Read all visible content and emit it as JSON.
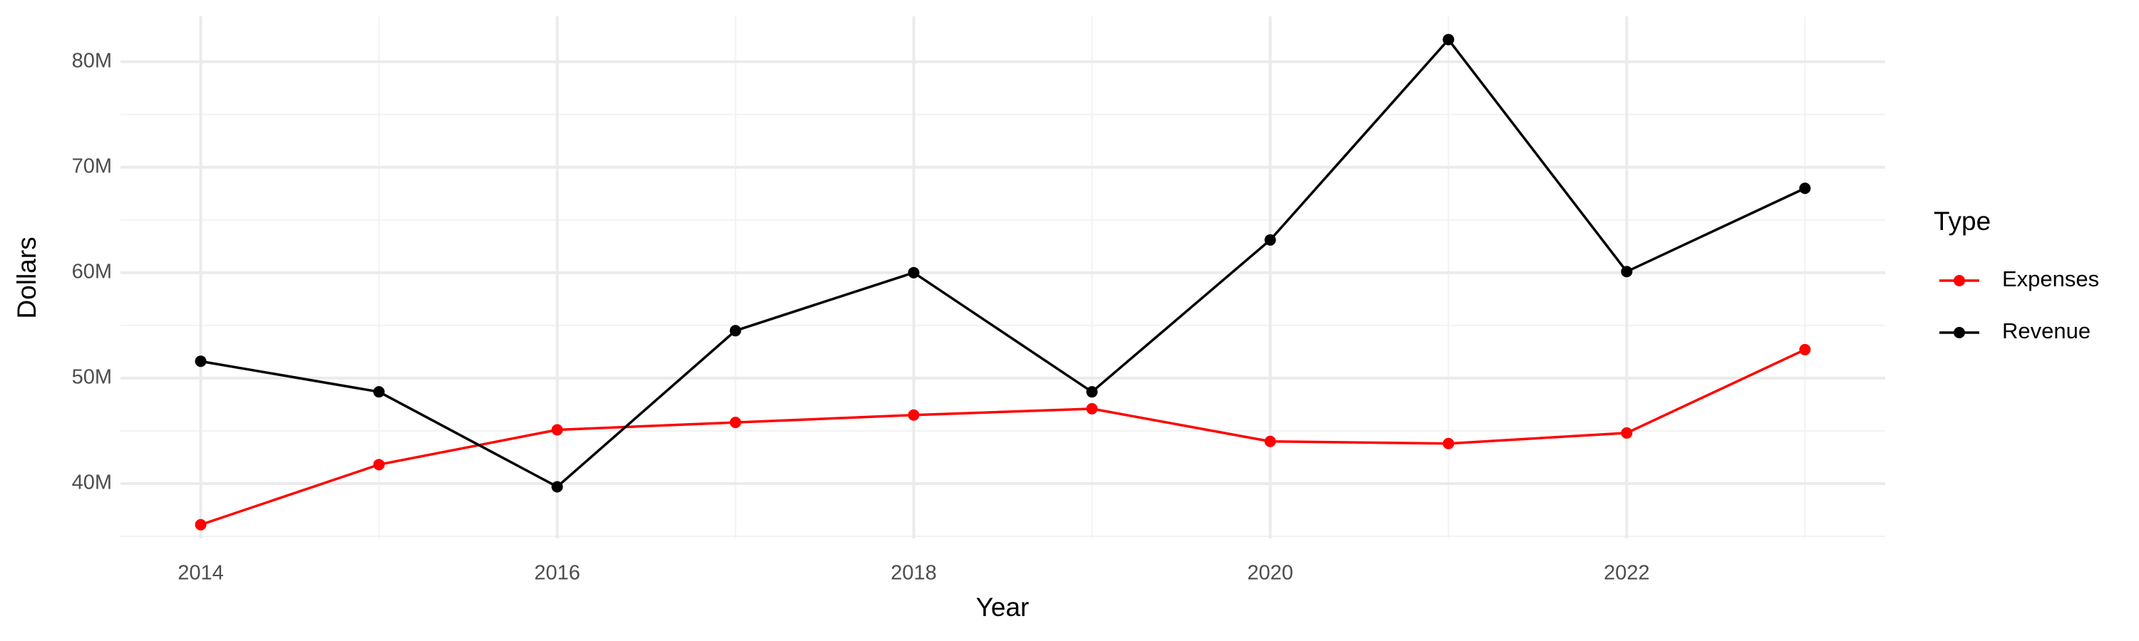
{
  "chart_data": {
    "type": "line",
    "x_label": "Year",
    "y_label": "Dollars",
    "legend_title": "Type",
    "legend": "right",
    "grid": true,
    "x": [
      2014,
      2015,
      2016,
      2017,
      2018,
      2019,
      2020,
      2021,
      2022,
      2023
    ],
    "series": [
      {
        "name": "Expenses",
        "color": "#ff0000",
        "values": [
          36100000,
          41800000,
          45100000,
          45800000,
          46500000,
          47100000,
          44000000,
          43800000,
          44800000,
          52700000
        ]
      },
      {
        "name": "Revenue",
        "color": "#000000",
        "values": [
          51600000,
          48700000,
          39700000,
          54500000,
          60000000,
          48700000,
          63100000,
          82100000,
          60100000,
          68000000
        ]
      }
    ],
    "xlim": [
      2013.55,
      2023.45
    ],
    "xticks": [
      2014,
      2016,
      2018,
      2020,
      2022
    ],
    "ylim": [
      34800000,
      84300000
    ],
    "yticks": [
      {
        "value": 40000000,
        "label": "40M"
      },
      {
        "value": 50000000,
        "label": "50M"
      },
      {
        "value": 60000000,
        "label": "60M"
      },
      {
        "value": 70000000,
        "label": "70M"
      },
      {
        "value": 80000000,
        "label": "80M"
      }
    ]
  }
}
